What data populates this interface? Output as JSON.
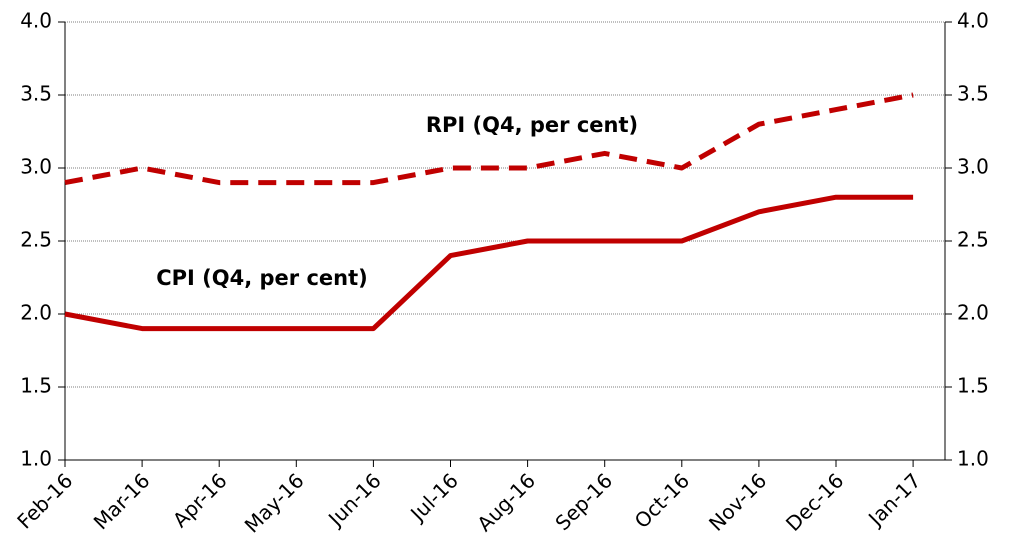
{
  "chart_data": {
    "type": "line",
    "categories": [
      "Feb-16",
      "Mar-16",
      "Apr-16",
      "May-16",
      "Jun-16",
      "Jul-16",
      "Aug-16",
      "Sep-16",
      "Oct-16",
      "Nov-16",
      "Dec-16",
      "Jan-17"
    ],
    "series": [
      {
        "name": "CPI (Q4, per cent)",
        "color": "#c00000",
        "dash": false,
        "values": [
          2.0,
          1.9,
          1.9,
          1.9,
          1.9,
          2.4,
          2.5,
          2.5,
          2.5,
          2.7,
          2.8,
          2.8
        ]
      },
      {
        "name": "RPI (Q4, per cent)",
        "color": "#c00000",
        "dash": true,
        "values": [
          2.9,
          3.0,
          2.9,
          2.9,
          2.9,
          3.0,
          3.0,
          3.1,
          3.0,
          3.3,
          3.4,
          3.5
        ]
      }
    ],
    "ylim": [
      1.0,
      4.0
    ],
    "yticks": [
      {
        "value": 1,
        "label": "1.0"
      },
      1.5,
      {
        "value": 2,
        "label": "2.0"
      },
      2.5,
      {
        "value": 3,
        "label": "3.0"
      },
      3.5,
      {
        "value": 4,
        "label": "4.0"
      }
    ],
    "y2lim": [
      1.0,
      4.0
    ],
    "y2ticks": [
      {
        "value": 1,
        "label": "1.0"
      },
      1.5,
      {
        "value": 2,
        "label": "2.0"
      },
      2.5,
      {
        "value": 3,
        "label": "3.0"
      },
      3.5,
      {
        "value": 4,
        "label": "4.0"
      }
    ],
    "grid": true
  }
}
